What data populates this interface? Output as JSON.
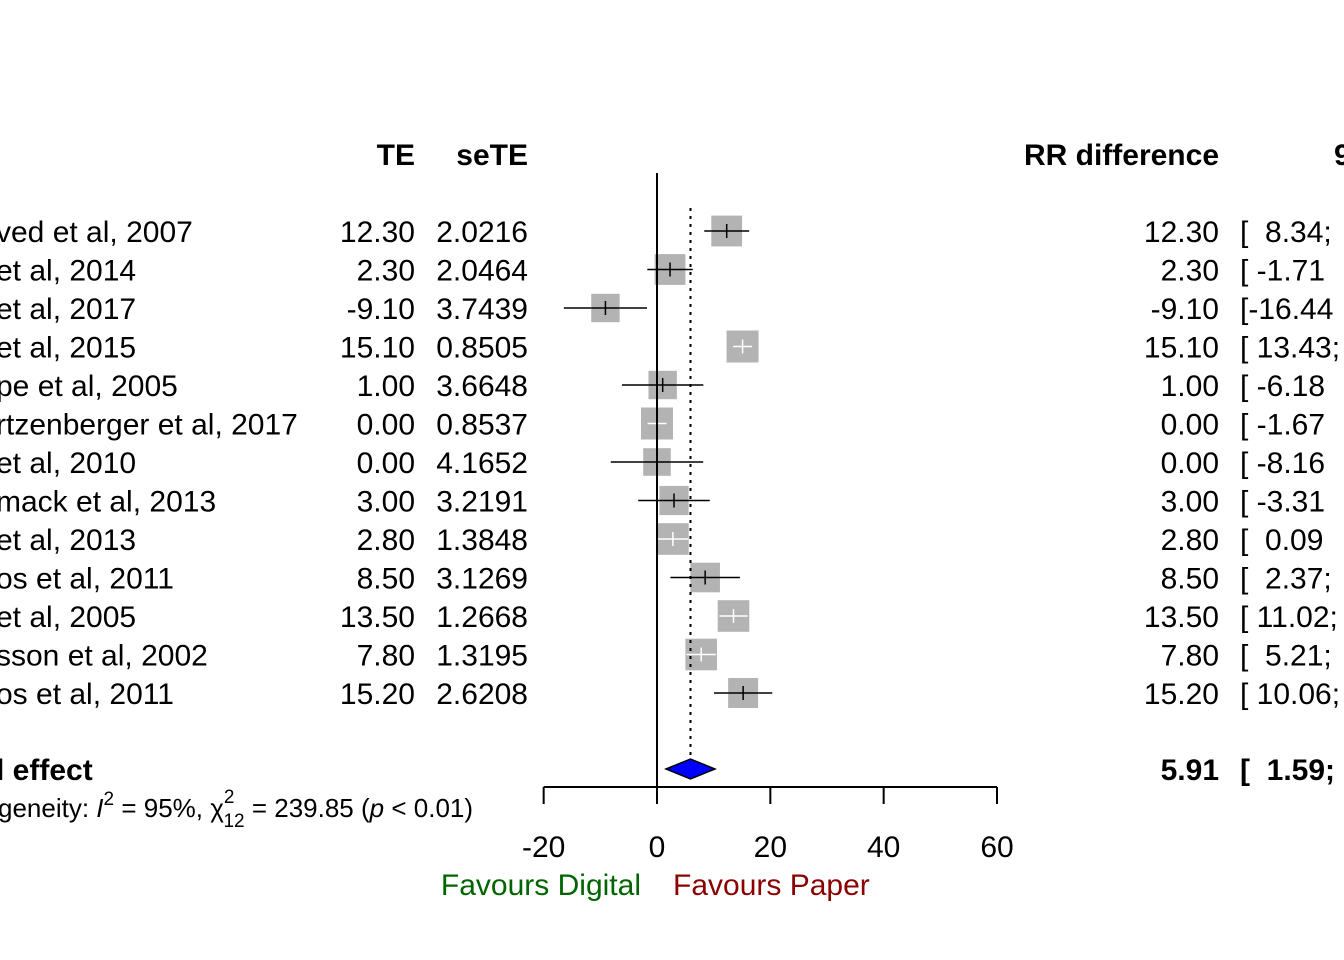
{
  "chart_data": {
    "type": "forest",
    "columns": {
      "te": "TE",
      "sete": "seTE",
      "effect": "RR difference",
      "ci": "9"
    },
    "studies": [
      {
        "label": "ved et al, 2007",
        "te": "12.30",
        "sete": "2.0216",
        "effect": "12.30",
        "ci": "[  8.34;",
        "est": 12.3,
        "lower": 8.34,
        "upper": 16.26,
        "weight": 7.7
      },
      {
        "label": "et al, 2014",
        "te": "2.30",
        "sete": "2.0464",
        "effect": "2.30",
        "ci": "[ -1.71",
        "est": 2.3,
        "lower": -1.71,
        "upper": 6.31,
        "weight": 7.7
      },
      {
        "label": " et al, 2017",
        "te": "-9.10",
        "sete": "3.7439",
        "effect": "-9.10",
        "ci": "[-16.44",
        "est": -9.1,
        "lower": -16.44,
        "upper": -1.76,
        "weight": 7.1
      },
      {
        "label": " et al, 2015",
        "te": "15.10",
        "sete": "0.8505",
        "effect": "15.10",
        "ci": "[ 13.43;",
        "est": 15.1,
        "lower": 13.43,
        "upper": 16.77,
        "weight": 8.0
      },
      {
        "label": "pe et al, 2005",
        "te": "1.00",
        "sete": "3.6648",
        "effect": "1.00",
        "ci": "[ -6.18",
        "est": 1.0,
        "lower": -6.18,
        "upper": 8.18,
        "weight": 7.1
      },
      {
        "label": "rtzenberger et al, 2017",
        "te": "0.00",
        "sete": "0.8537",
        "effect": "0.00",
        "ci": "[ -1.67",
        "est": 0.0,
        "lower": -1.67,
        "upper": 1.67,
        "weight": 8.0
      },
      {
        "label": "et al, 2010",
        "te": "0.00",
        "sete": "4.1652",
        "effect": "0.00",
        "ci": "[ -8.16",
        "est": 0.0,
        "lower": -8.16,
        "upper": 8.16,
        "weight": 6.9
      },
      {
        "label": "mack et al, 2013",
        "te": "3.00",
        "sete": "3.2191",
        "effect": "3.00",
        "ci": "[ -3.31",
        "est": 3.0,
        "lower": -3.31,
        "upper": 9.31,
        "weight": 7.3
      },
      {
        "label": "et al, 2013",
        "te": "2.80",
        "sete": "1.3848",
        "effect": "2.80",
        "ci": "[  0.09",
        "est": 2.8,
        "lower": 0.09,
        "upper": 5.51,
        "weight": 7.9
      },
      {
        "label": "os et al, 2011",
        "te": "8.50",
        "sete": "3.1269",
        "effect": "8.50",
        "ci": "[  2.37;",
        "est": 8.5,
        "lower": 2.37,
        "upper": 14.63,
        "weight": 7.4
      },
      {
        "label": "et al, 2005",
        "te": "13.50",
        "sete": "1.2668",
        "effect": "13.50",
        "ci": "[ 11.02;",
        "est": 13.5,
        "lower": 11.02,
        "upper": 15.98,
        "weight": 7.9
      },
      {
        "label": "sson et al, 2002",
        "te": "7.80",
        "sete": "1.3195",
        "effect": "7.80",
        "ci": "[  5.21;",
        "est": 7.8,
        "lower": 5.21,
        "upper": 10.39,
        "weight": 7.9
      },
      {
        "label": "os et al, 2011",
        "te": "15.20",
        "sete": "2.6208",
        "effect": "15.20",
        "ci": "[ 10.06;",
        "est": 15.2,
        "lower": 10.06,
        "upper": 20.34,
        "weight": 7.5
      }
    ],
    "overall": {
      "label": "l effect",
      "effect": "5.91",
      "ci": "[  1.59;",
      "est": 5.91,
      "lower": 1.59,
      "upper": 10.23
    },
    "heterogeneity": {
      "prefix": "geneity: ",
      "i2_symbol": "I",
      "i2_sup": "2",
      "i2_value": " = 95%, ",
      "chi_symbol": "χ",
      "chi_sup": "2",
      "chi_sub": "12",
      "chi_value": " = 239.85 (",
      "p_symbol": "p",
      "p_value": " < 0.01)"
    },
    "xaxis": {
      "ticks": [
        -20,
        0,
        20,
        40,
        60
      ],
      "tick_labels": [
        "-20",
        "0",
        "20",
        "40",
        "60"
      ],
      "range": [
        -20,
        60
      ]
    },
    "reference_line": 0,
    "favours_left": "Favours Digital",
    "favours_right": "Favours Paper",
    "colors": {
      "square": "#b3b3b3",
      "diamond": "#0000ff",
      "favours_left": "#006400",
      "favours_right": "#8b0000",
      "line": "#000000",
      "inner_whisker": "#ffffff"
    }
  }
}
